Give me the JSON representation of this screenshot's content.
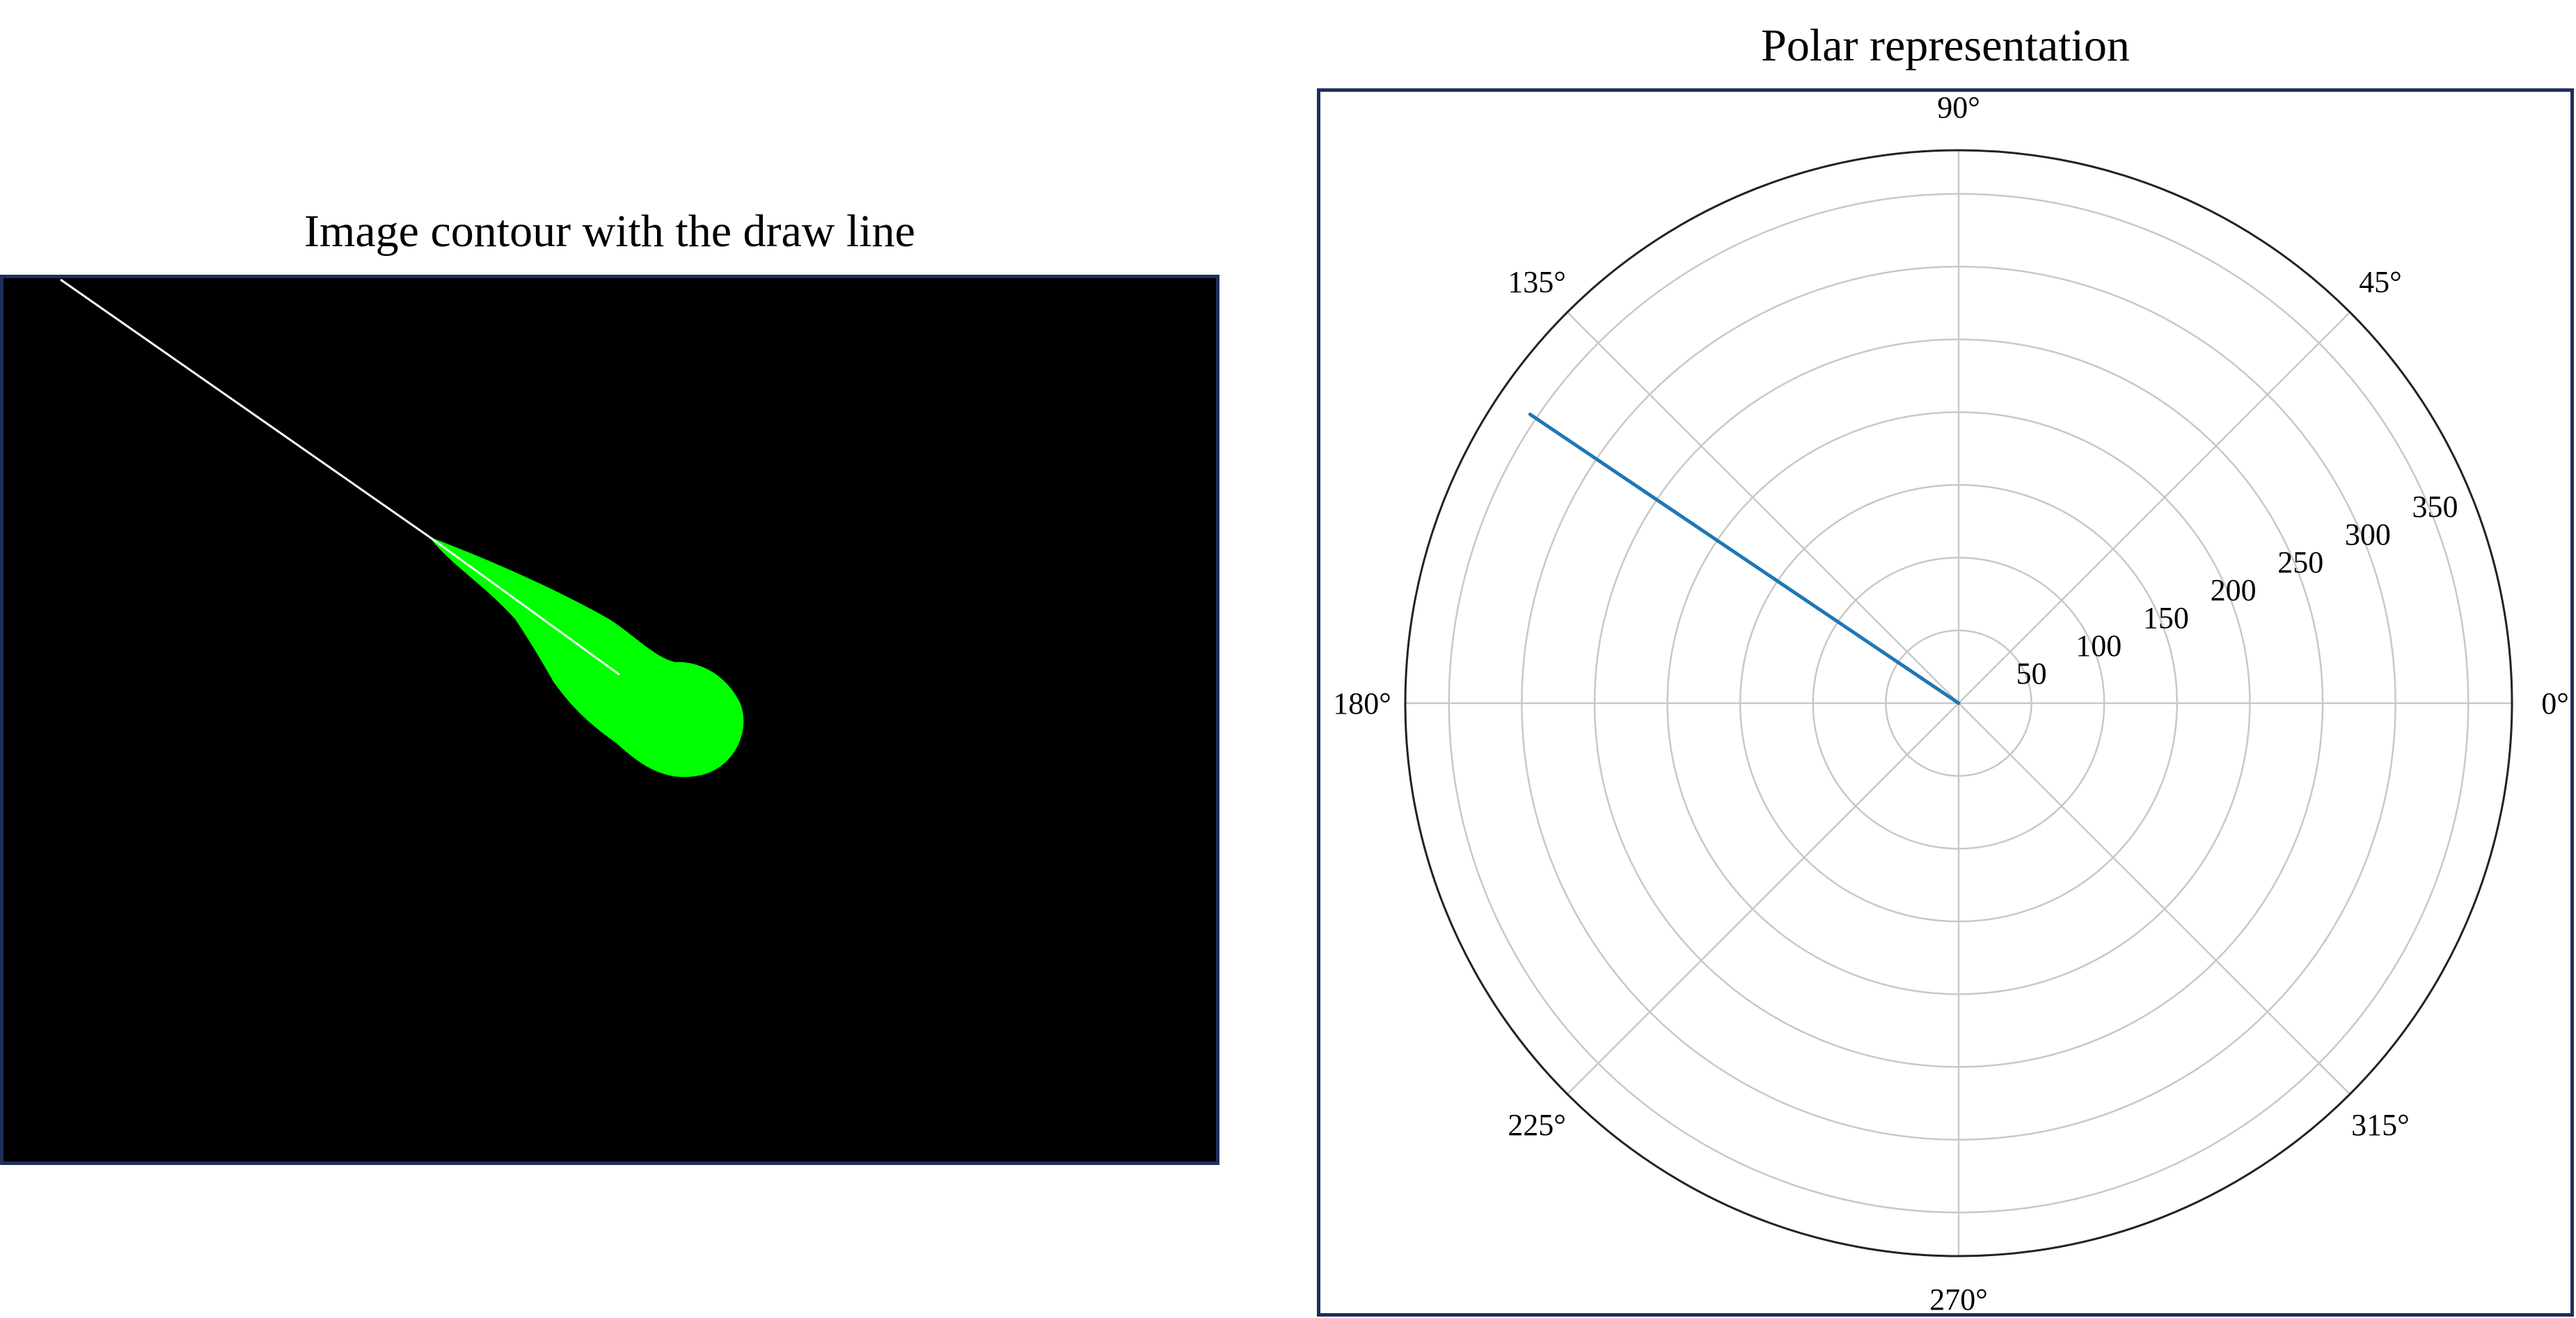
{
  "left_panel": {
    "title": "Image contour with the draw line",
    "background_color": "#000000",
    "contour_color": "#00ff00",
    "line_color": "#ffffff"
  },
  "chart_data": {
    "type": "polar-line",
    "title": "Polar representation",
    "theta_ticks": [
      "0°",
      "45°",
      "90°",
      "135°",
      "180°",
      "225°",
      "270°",
      "315°"
    ],
    "theta_tick_values_deg": [
      0,
      45,
      90,
      135,
      180,
      225,
      270,
      315
    ],
    "r_ticks": [
      50,
      100,
      150,
      200,
      250,
      300,
      350
    ],
    "r_ticks_labels": [
      "50",
      "100",
      "150",
      "200",
      "250",
      "300",
      "350"
    ],
    "rlim": [
      0,
      380
    ],
    "r_label_angle_deg": 22.5,
    "grid": true,
    "series": [
      {
        "theta_deg": [
          0,
          146
        ],
        "r": [
          0,
          355
        ],
        "color": "#1f77b4"
      }
    ]
  }
}
